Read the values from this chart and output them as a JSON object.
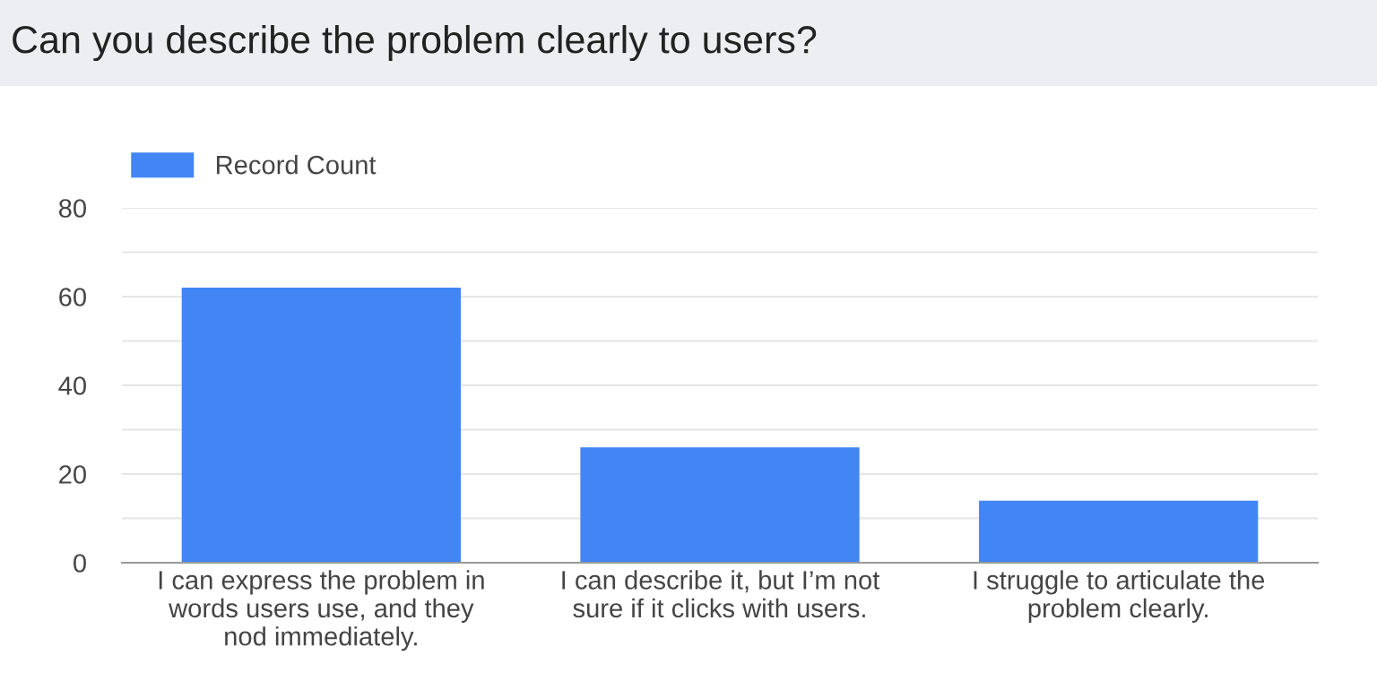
{
  "chart_data": {
    "type": "bar",
    "title": "Can you describe the problem clearly to users?",
    "categories": [
      "I can express the problem in\nwords users use, and they\nnod immediately.",
      "I can describe it, but I’m not\nsure if it clicks with users.",
      "I struggle to articulate the\nproblem clearly."
    ],
    "series": [
      {
        "name": "Record Count",
        "color": "#4285f4",
        "values": [
          62,
          26,
          14
        ]
      }
    ],
    "ylim": [
      0,
      80
    ],
    "yticks": [
      0,
      {
        "value": 10,
        "label": null
      },
      20,
      {
        "value": 30,
        "label": null
      },
      40,
      {
        "value": 50,
        "label": null
      },
      60,
      {
        "value": 70,
        "label": null
      },
      80
    ],
    "grid": "y",
    "legend": "top left"
  }
}
